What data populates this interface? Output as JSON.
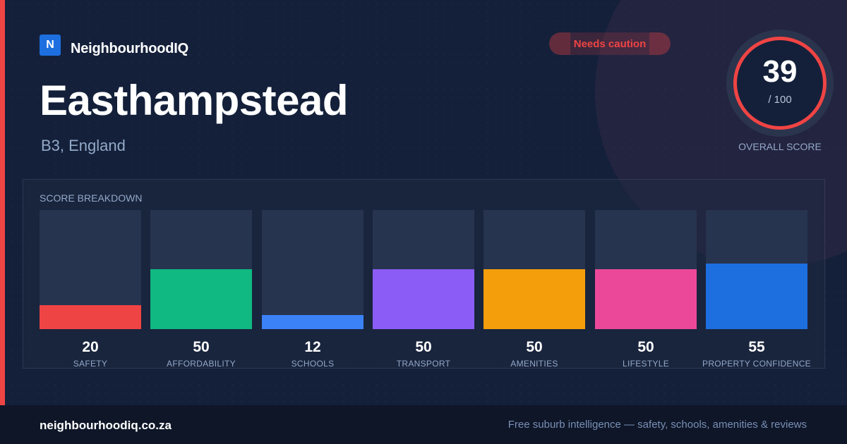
{
  "brand": {
    "logo_letter": "N",
    "name": "NeighbourhoodIQ"
  },
  "badge": {
    "text": "Needs caution",
    "color": "#ef4444"
  },
  "location": {
    "name": "Easthampstead",
    "subtitle": "B3, England"
  },
  "score": {
    "value": "39",
    "max": "/ 100",
    "label": "OVERALL SCORE",
    "ring_color": "#ef4444"
  },
  "breakdown": {
    "heading": "SCORE BREAKDOWN",
    "max_value": 100,
    "items": [
      {
        "label": "SAFETY",
        "value": 20,
        "color": "#ef4444"
      },
      {
        "label": "AFFORDABILITY",
        "value": 50,
        "color": "#10b981"
      },
      {
        "label": "SCHOOLS",
        "value": 12,
        "color": "#3b82f6"
      },
      {
        "label": "TRANSPORT",
        "value": 50,
        "color": "#8b5cf6"
      },
      {
        "label": "AMENITIES",
        "value": 50,
        "color": "#f59e0b"
      },
      {
        "label": "LIFESTYLE",
        "value": 50,
        "color": "#ec4899"
      },
      {
        "label": "PROPERTY CONFIDENCE",
        "value": 55,
        "color": "#1d6fe0"
      }
    ]
  },
  "footer": {
    "domain": "neighbourhoodiq.co.za",
    "tagline": "Free suburb intelligence — safety, schools, amenities & reviews"
  }
}
